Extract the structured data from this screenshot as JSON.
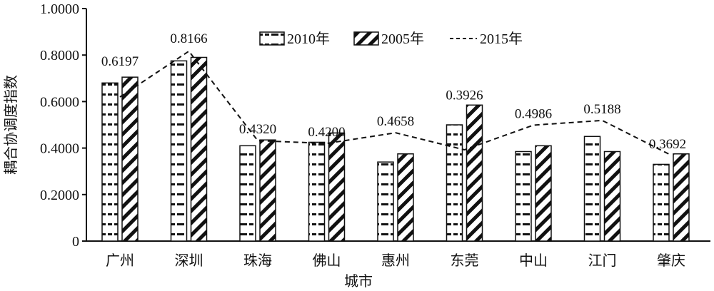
{
  "chart_data": {
    "type": "bar",
    "xlabel": "城市",
    "ylabel": "耦合协调度指数",
    "ylim": [
      0,
      1.0
    ],
    "yticks": [
      "0",
      "0.2000",
      "0.4000",
      "0.6000",
      "0.8000",
      "1.0000"
    ],
    "ytick_values": [
      0,
      0.2,
      0.4,
      0.6,
      0.8,
      1.0
    ],
    "categories": [
      "广州",
      "深圳",
      "珠海",
      "佛山",
      "惠州",
      "东莞",
      "中山",
      "江门",
      "肇庆"
    ],
    "series": [
      {
        "name": "2010年",
        "kind": "bar",
        "pattern": "dash-dot",
        "values": [
          0.68,
          0.775,
          0.41,
          0.425,
          0.34,
          0.5,
          0.385,
          0.45,
          0.33
        ]
      },
      {
        "name": "2005年",
        "kind": "bar",
        "pattern": "diagonal",
        "values": [
          0.705,
          0.79,
          0.435,
          0.465,
          0.375,
          0.585,
          0.41,
          0.385,
          0.375
        ]
      },
      {
        "name": "2015年",
        "kind": "line",
        "style": "dashed",
        "values": [
          0.6197,
          0.8166,
          0.432,
          0.42,
          0.4658,
          0.3926,
          0.4986,
          0.5188,
          0.3692
        ]
      }
    ],
    "data_labels": [
      "0.6197",
      "0.8166",
      "0.4320",
      "0.4200",
      "0.4658",
      "0.3926",
      "0.4986",
      "0.5188",
      "0.3692"
    ],
    "legend_position": "top-center",
    "grid": false
  }
}
